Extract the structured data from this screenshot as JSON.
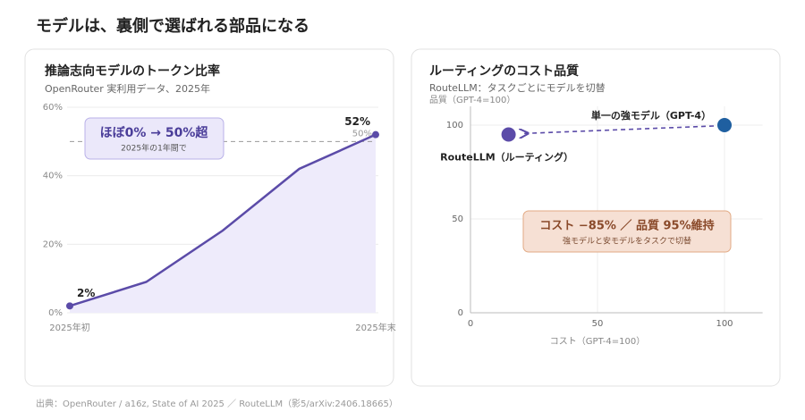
{
  "title": "モデルは、裏側で選ばれる部品になる",
  "footer": "出典：OpenRouter / a16z, State of AI 2025 ／ RouteLLM（影5/arXiv:2406.18665）",
  "chart_data": [
    {
      "type": "line",
      "title": "推論志向モデルのトークン比率",
      "subtitle": "OpenRouter 実利用データ、2025年",
      "categories": [
        "2025年初",
        null,
        null,
        null,
        "2025年末"
      ],
      "values": [
        2,
        9,
        24,
        42,
        52
      ],
      "value_labels": [
        "2%",
        null,
        null,
        null,
        "52%"
      ],
      "color": "#5b4ba8",
      "ylim": [
        0,
        60
      ],
      "yticks": [
        {
          "value": 0,
          "label": "0%"
        },
        {
          "value": 20,
          "label": "20%"
        },
        {
          "value": 40,
          "label": "40%"
        },
        {
          "value": 60,
          "label": "60%"
        }
      ],
      "grid": true,
      "reference": {
        "value": 50,
        "label": "50%"
      },
      "callout": {
        "title": "ほぼ0% → 50%超",
        "text": "2025年の1年間で"
      }
    },
    {
      "type": "scatter",
      "title": "ルーティングのコスト品質",
      "subtitle": "RouteLLM：タスクごとにモデルを切替",
      "xlabel": "コスト（GPT-4=100）",
      "ylabel": "品質（GPT-4=100）",
      "points": [
        {
          "label": "単一の強モデル（GPT-4）",
          "x": 100,
          "y": 100,
          "color": "#1f5fa0"
        },
        {
          "label": "RouteLLM（ルーティング）",
          "x": 15,
          "y": 95,
          "color": "#5b4ba8"
        }
      ],
      "xlim": [
        0,
        115
      ],
      "ylim": [
        0,
        110
      ],
      "xticks": [
        0,
        50,
        100
      ],
      "yticks": [
        0,
        50,
        100
      ],
      "grid": true,
      "callout": {
        "title": "コスト −85% ／ 品質 95%維持",
        "text": "強モデルと安モデルをタスクで切替"
      }
    }
  ]
}
